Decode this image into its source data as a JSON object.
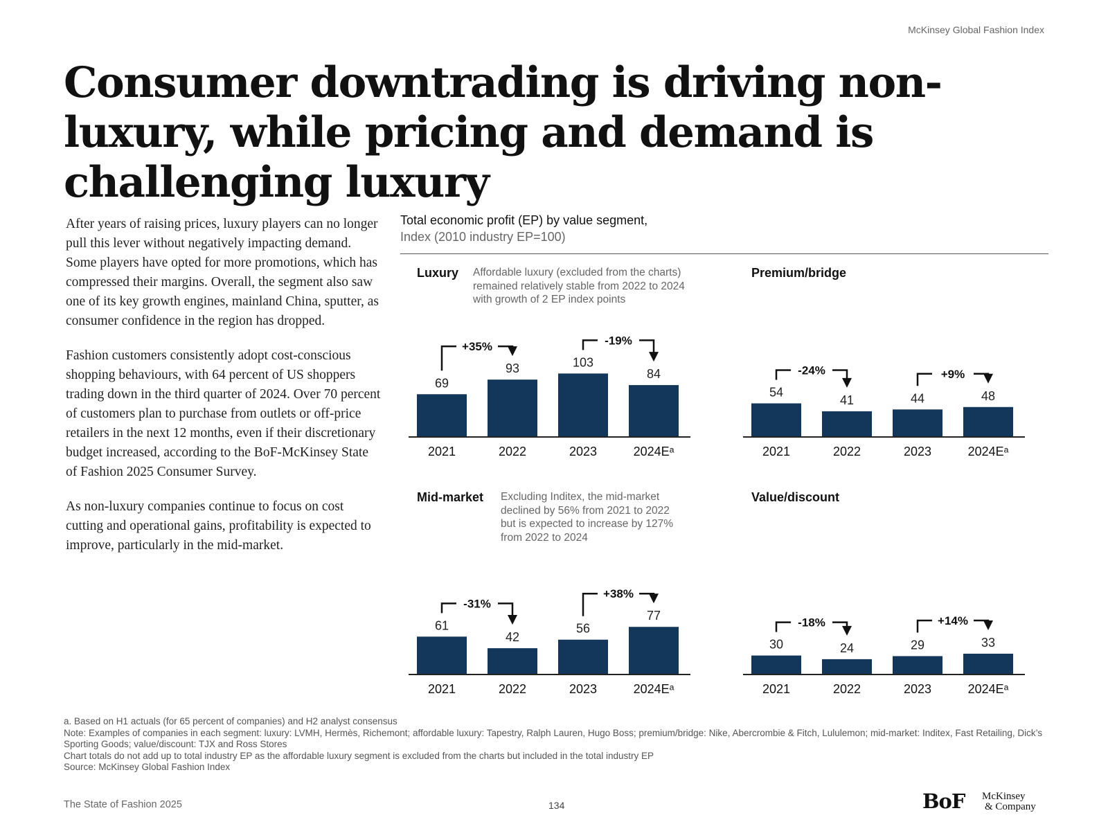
{
  "header": {
    "top_label": "McKinsey Global Fashion Index",
    "headline": "Consumer downtrading is driving non-luxury, while pricing and demand is challenging luxury"
  },
  "body_paragraphs": [
    "After years of raising prices, luxury players can no longer pull this lever without negatively impacting demand. Some players have opted for more promotions, which has compressed their margins. Overall, the segment also saw one of its key growth engines, mainland China, sputter, as consumer confidence in the region has dropped.",
    "Fashion customers consistently adopt cost-conscious shopping behaviours, with 64 percent of US shoppers trading down in the third quarter of 2024. Over 70 percent of customers plan to purchase from outlets or off-price retailers in the next 12 months, even if their discretionary budget increased, according to the BoF-McKinsey State of Fashion 2025 Consumer Survey.",
    "As non-luxury companies continue to focus on cost cutting and operational gains, profitability is expected to improve, particularly in the mid-market."
  ],
  "chart_header": {
    "title": "Total economic profit (EP) by value segment,",
    "subtitle": "Index (2010 industry EP=100)"
  },
  "colors": {
    "bar": "#13375B",
    "axis": "#222222",
    "text": "#111111",
    "muted": "#666666"
  },
  "chart_data": [
    {
      "type": "bar",
      "title": "Luxury",
      "note": [
        "Affordable luxury (excluded from the charts)",
        "remained relatively stable from 2022 to 2024",
        "with growth of 2 EP index points"
      ],
      "categories": [
        "2021",
        "2022",
        "2023",
        "2024Eᵃ"
      ],
      "values": [
        69,
        93,
        103,
        84
      ],
      "changes": [
        {
          "from": 0,
          "to": 1,
          "label": "+35%"
        },
        {
          "from": 2,
          "to": 3,
          "label": "-19%"
        }
      ]
    },
    {
      "type": "bar",
      "title": "Premium/bridge",
      "note": [],
      "categories": [
        "2021",
        "2022",
        "2023",
        "2024Eᵃ"
      ],
      "values": [
        54,
        41,
        44,
        48
      ],
      "changes": [
        {
          "from": 0,
          "to": 1,
          "label": "-24%"
        },
        {
          "from": 2,
          "to": 3,
          "label": "+9%"
        }
      ]
    },
    {
      "type": "bar",
      "title": "Mid-market",
      "note": [
        "Excluding Inditex, the mid-market",
        "declined by 56% from 2021 to 2022",
        "but is expected to increase by 127%",
        "from 2022 to 2024"
      ],
      "categories": [
        "2021",
        "2022",
        "2023",
        "2024Eᵃ"
      ],
      "values": [
        61,
        42,
        56,
        77
      ],
      "changes": [
        {
          "from": 0,
          "to": 1,
          "label": "-31%"
        },
        {
          "from": 2,
          "to": 3,
          "label": "+38%"
        }
      ]
    },
    {
      "type": "bar",
      "title": "Value/discount",
      "note": [],
      "categories": [
        "2021",
        "2022",
        "2023",
        "2024Eᵃ"
      ],
      "values": [
        30,
        24,
        29,
        33
      ],
      "changes": [
        {
          "from": 0,
          "to": 1,
          "label": "-18%"
        },
        {
          "from": 2,
          "to": 3,
          "label": "+14%"
        }
      ]
    }
  ],
  "footnotes": [
    "a. Based on H1 actuals (for 65 percent of companies) and H2 analyst consensus",
    "Note: Examples of companies in each segment: luxury: LVMH, Hermès, Richemont; affordable luxury: Tapestry, Ralph Lauren, Hugo Boss; premium/bridge: Nike, Abercrombie & Fitch, Lululemon; mid-market: Inditex, Fast Retailing, Dick’s Sporting Goods; value/discount: TJX and Ross Stores",
    "Chart totals do not add up to total industry EP as the affordable luxury segment is excluded from the charts but included in the total industry EP",
    "Source: McKinsey Global Fashion Index"
  ],
  "footer": {
    "publication": "The State of Fashion 2025",
    "page_number": "134",
    "bof_logo": "BoF",
    "mckinsey_logo_line1": "McKinsey",
    "mckinsey_logo_line2": "& Company"
  }
}
